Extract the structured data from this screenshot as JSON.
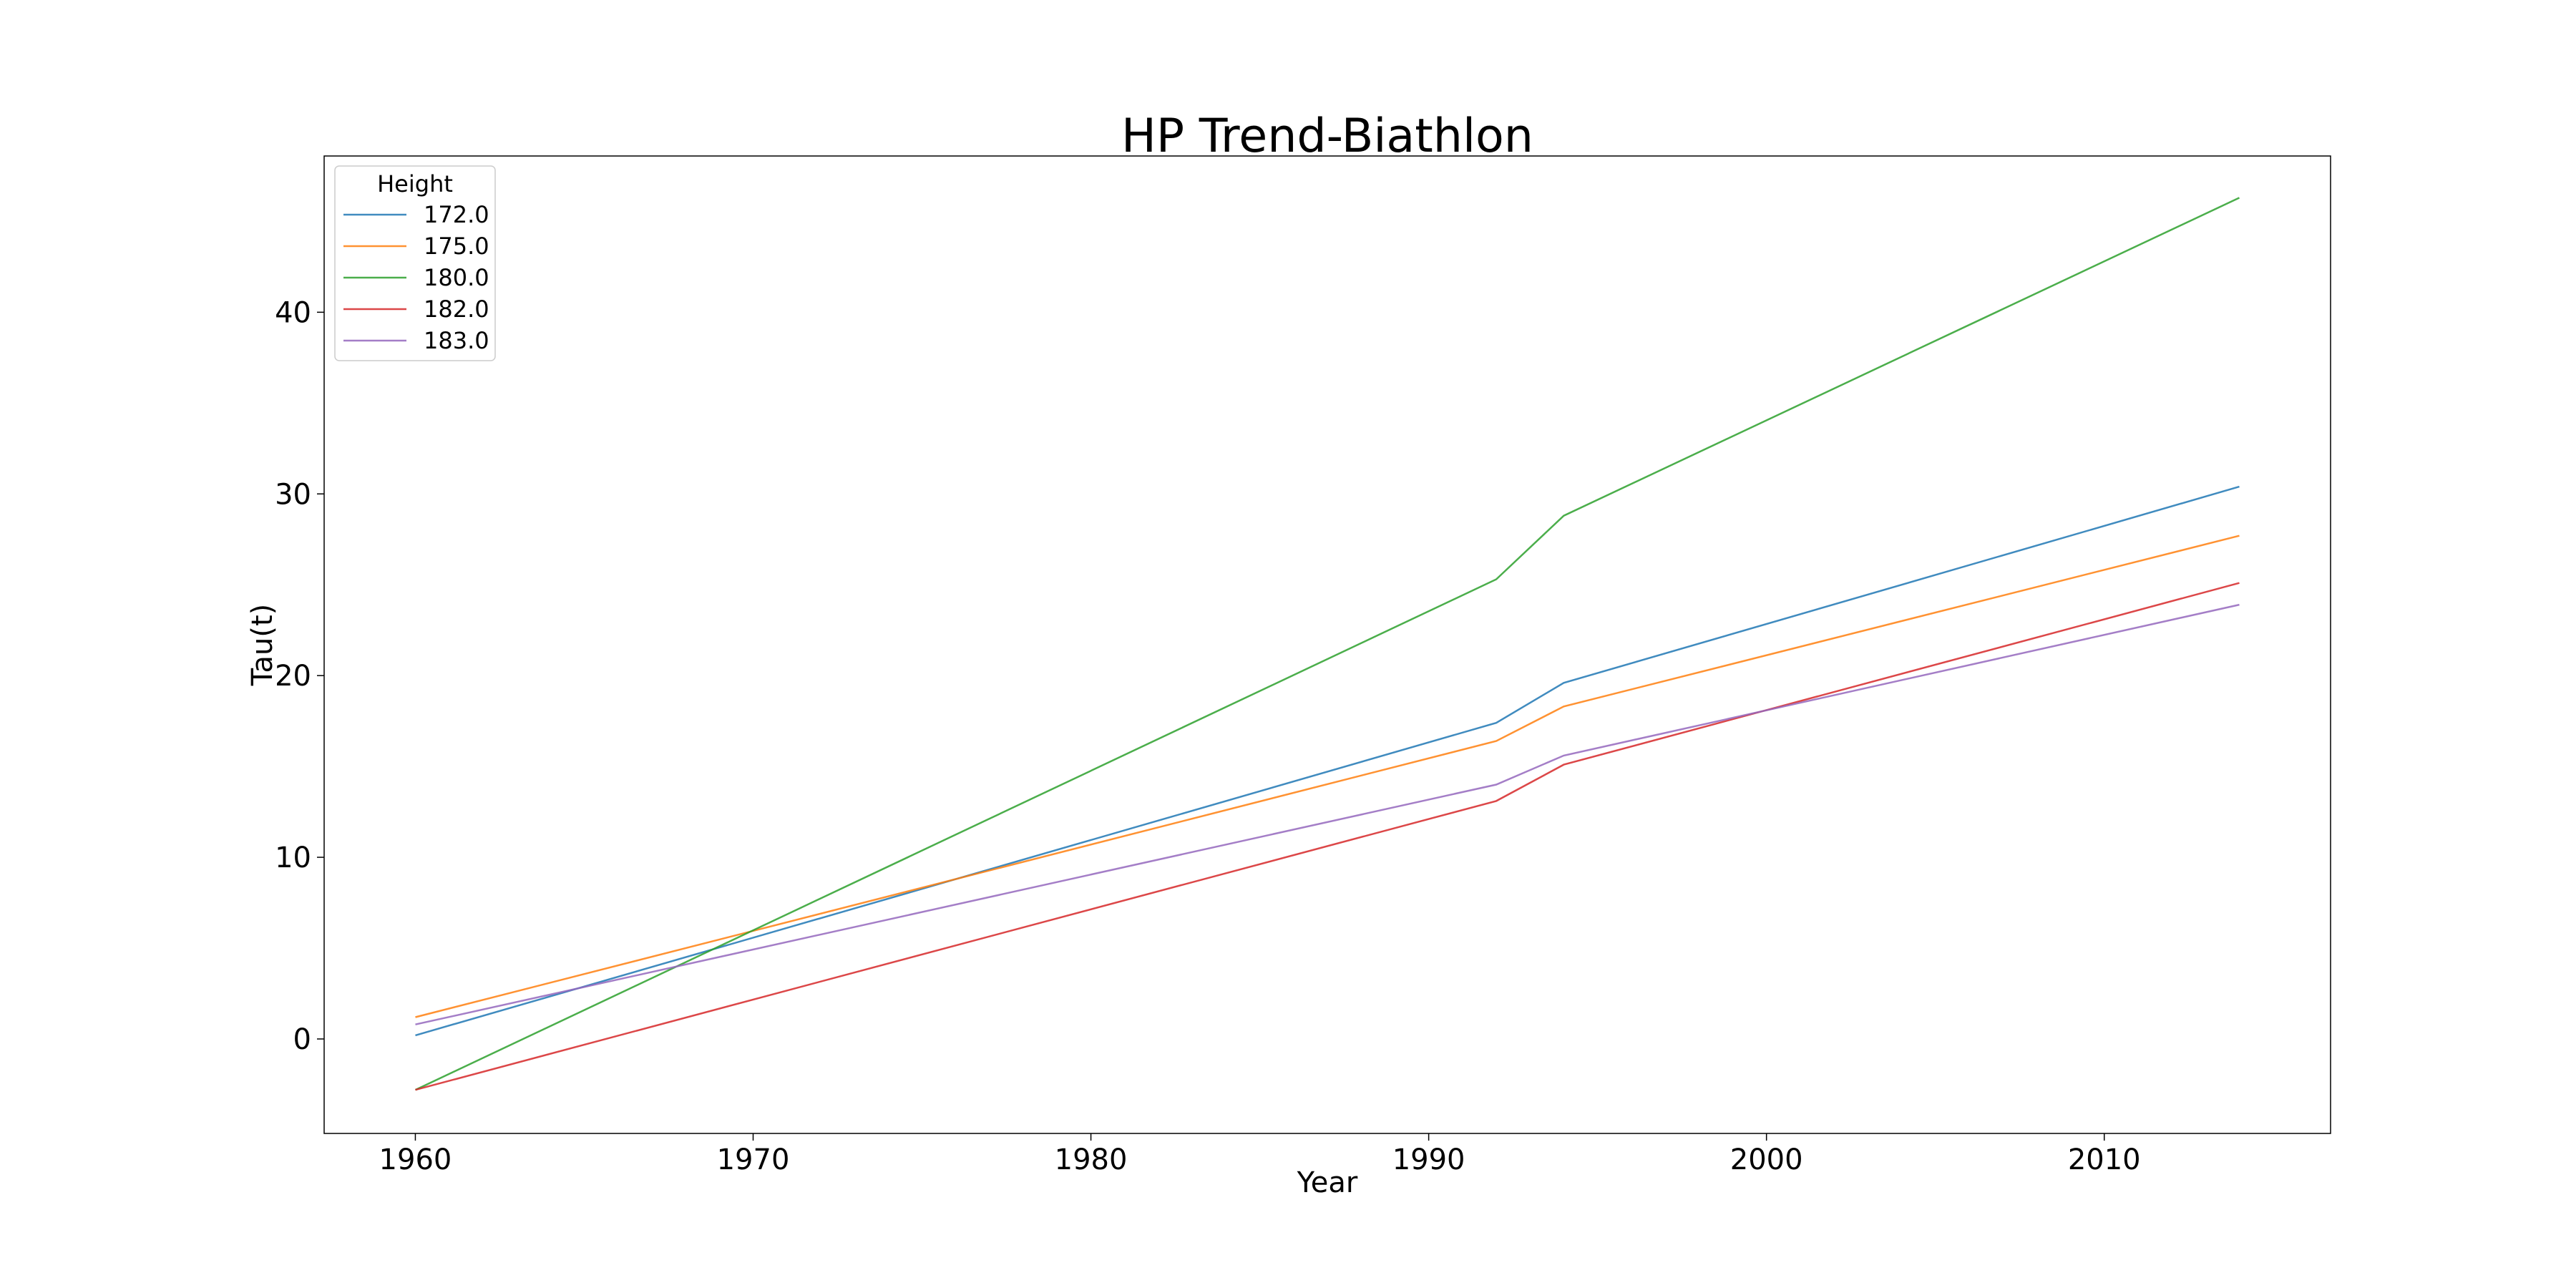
{
  "chart_data": {
    "type": "line",
    "title": "HP Trend-Biathlon",
    "xlabel": "Year",
    "ylabel": "Tau(t)",
    "xlim": [
      1957.3,
      2016.7
    ],
    "ylim": [
      -5.2,
      48.6
    ],
    "xticks": [
      1960,
      1970,
      1980,
      1990,
      2000,
      2010
    ],
    "yticks": [
      0,
      10,
      20,
      30,
      40
    ],
    "grid": false,
    "legend": {
      "title": "Height",
      "position": "top-left"
    },
    "x": [
      1960,
      1992,
      1994,
      2014
    ],
    "series": [
      {
        "name": "172.0",
        "color": "#1f77b4",
        "values": [
          0.2,
          17.4,
          19.6,
          30.4
        ]
      },
      {
        "name": "175.0",
        "color": "#ff7f0e",
        "values": [
          1.2,
          16.4,
          18.3,
          27.7
        ]
      },
      {
        "name": "180.0",
        "color": "#2ca02c",
        "values": [
          -2.8,
          25.3,
          28.8,
          46.3
        ]
      },
      {
        "name": "182.0",
        "color": "#d62728",
        "values": [
          -2.8,
          13.1,
          15.1,
          25.1
        ]
      },
      {
        "name": "183.0",
        "color": "#9467bd",
        "values": [
          0.8,
          14.0,
          15.6,
          23.9
        ]
      }
    ]
  }
}
